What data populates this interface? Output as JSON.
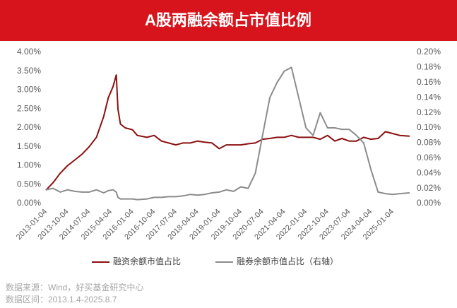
{
  "chart_data": {
    "type": "line",
    "title": "A股两融余额占市值比例",
    "x": [
      "2013-01-04",
      "2013-04-04",
      "2013-07-04",
      "2013-10-04",
      "2014-01-04",
      "2014-04-04",
      "2014-07-04",
      "2014-10-04",
      "2015-01-04",
      "2015-03-04",
      "2015-05-04",
      "2015-06-12",
      "2015-07-04",
      "2015-08-04",
      "2015-10-04",
      "2016-01-04",
      "2016-03-04",
      "2016-07-04",
      "2016-10-04",
      "2017-01-04",
      "2017-04-04",
      "2017-07-04",
      "2017-10-04",
      "2018-01-04",
      "2018-04-04",
      "2018-07-04",
      "2018-10-04",
      "2019-01-04",
      "2019-04-04",
      "2019-07-04",
      "2019-10-04",
      "2020-01-04",
      "2020-04-04",
      "2020-07-04",
      "2020-10-04",
      "2021-01-04",
      "2021-04-04",
      "2021-07-04",
      "2021-10-04",
      "2022-01-04",
      "2022-04-04",
      "2022-07-04",
      "2022-10-04",
      "2023-01-04",
      "2023-04-04",
      "2023-07-04",
      "2023-10-04",
      "2024-01-04",
      "2024-04-04",
      "2024-07-04",
      "2024-10-04",
      "2025-01-04",
      "2025-04-04",
      "2025-08-07"
    ],
    "series": [
      {
        "name": "融资余额市值占比",
        "color": "#8b1010",
        "values": [
          0.35,
          0.55,
          0.8,
          1.0,
          1.15,
          1.3,
          1.5,
          1.75,
          2.3,
          2.8,
          3.1,
          3.4,
          2.5,
          2.1,
          2.0,
          1.95,
          1.8,
          1.75,
          1.8,
          1.65,
          1.6,
          1.55,
          1.6,
          1.6,
          1.65,
          1.62,
          1.6,
          1.45,
          1.55,
          1.55,
          1.55,
          1.58,
          1.6,
          1.7,
          1.72,
          1.75,
          1.75,
          1.8,
          1.75,
          1.75,
          1.75,
          1.7,
          1.8,
          1.65,
          1.72,
          1.65,
          1.65,
          1.75,
          1.7,
          1.72,
          1.9,
          1.85,
          1.8,
          1.78
        ]
      },
      {
        "name": "融券余额市值占比（右轴）",
        "color": "#8c8c8c",
        "axis": "y2",
        "values": [
          0.018,
          0.02,
          0.015,
          0.018,
          0.016,
          0.015,
          0.015,
          0.018,
          0.014,
          0.017,
          0.018,
          0.015,
          0.008,
          0.006,
          0.006,
          0.006,
          0.005,
          0.006,
          0.008,
          0.008,
          0.009,
          0.009,
          0.01,
          0.012,
          0.011,
          0.012,
          0.014,
          0.015,
          0.018,
          0.016,
          0.022,
          0.02,
          0.04,
          0.09,
          0.14,
          0.16,
          0.175,
          0.18,
          0.14,
          0.1,
          0.09,
          0.12,
          0.1,
          0.1,
          0.098,
          0.098,
          0.09,
          0.08,
          0.045,
          0.015,
          0.013,
          0.012,
          0.013,
          0.014
        ]
      }
    ],
    "xlim": [
      "2013-01-04",
      "2025-08-07"
    ],
    "xticks": [
      "2013-01-04",
      "2013-10-04",
      "2014-07-04",
      "2015-04-04",
      "2016-01-04",
      "2016-10-04",
      "2017-07-04",
      "2018-04-04",
      "2019-01-04",
      "2019-10-04",
      "2020-07-04",
      "2021-04-04",
      "2022-01-04",
      "2022-10-04",
      "2023-07-04",
      "2024-04-04",
      "2025-01-04"
    ],
    "ylim": [
      0,
      4
    ],
    "yticks": [
      {
        "value": 0,
        "label": "0.00%"
      },
      {
        "value": 0.5,
        "label": "0.50%"
      },
      {
        "value": 1,
        "label": "1.00%"
      },
      {
        "value": 1.5,
        "label": "1.50%"
      },
      {
        "value": 2,
        "label": "2.00%"
      },
      {
        "value": 2.5,
        "label": "2.50%"
      },
      {
        "value": 3,
        "label": "3.00%"
      },
      {
        "value": 3.5,
        "label": "3.50%"
      },
      {
        "value": 4,
        "label": "4.00%"
      }
    ],
    "y2lim": [
      0,
      0.2
    ],
    "y2ticks": [
      {
        "value": 0,
        "label": "0.00%"
      },
      {
        "value": 0.02,
        "label": "0.02%"
      },
      {
        "value": 0.04,
        "label": "0.04%"
      },
      {
        "value": 0.06,
        "label": "0.06%"
      },
      {
        "value": 0.08,
        "label": "0.08%"
      },
      {
        "value": 0.1,
        "label": "0.10%"
      },
      {
        "value": 0.12,
        "label": "0.12%"
      },
      {
        "value": 0.14,
        "label": "0.14%"
      },
      {
        "value": 0.16,
        "label": "0.16%"
      },
      {
        "value": 0.18,
        "label": "0.18%"
      },
      {
        "value": 0.2,
        "label": "0.20%"
      }
    ],
    "grid": false,
    "title_color": "#d7141c",
    "source": "数据来源：Wind，好买基金研究中心",
    "period": "数据区间：2013.1.4-2025.8.7"
  }
}
